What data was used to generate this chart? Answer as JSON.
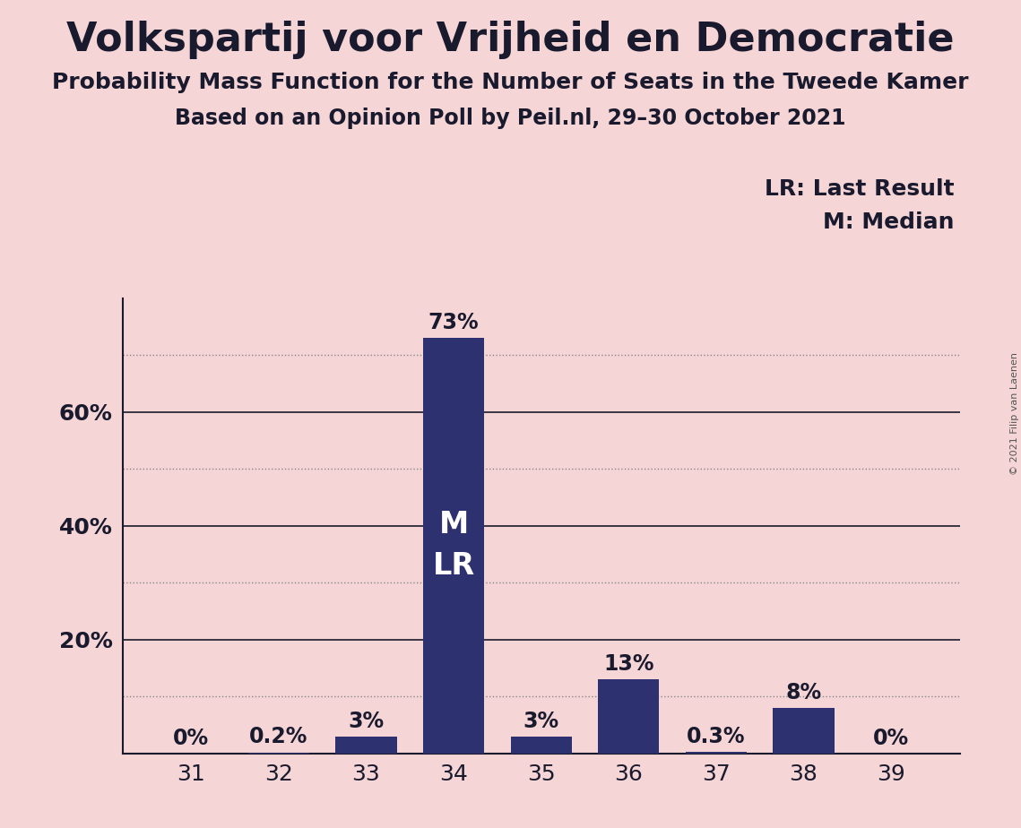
{
  "title": "Volkspartij voor Vrijheid en Democratie",
  "subtitle1": "Probability Mass Function for the Number of Seats in the Tweede Kamer",
  "subtitle2": "Based on an Opinion Poll by Peil.nl, 29–30 October 2021",
  "copyright": "© 2021 Filip van Laenen",
  "categories": [
    31,
    32,
    33,
    34,
    35,
    36,
    37,
    38,
    39
  ],
  "values": [
    0.0,
    0.2,
    3.0,
    73.0,
    3.0,
    13.0,
    0.3,
    8.0,
    0.0
  ],
  "labels": [
    "0%",
    "0.2%",
    "3%",
    "73%",
    "3%",
    "13%",
    "0.3%",
    "8%",
    "0%"
  ],
  "bar_color": "#2E3170",
  "background_color": "#F5D5D5",
  "text_color": "#1a1a2e",
  "label_color_inside": "#ffffff",
  "label_color_outside": "#1a1a2e",
  "solid_yticks": [
    20,
    40,
    60
  ],
  "dotted_yticks": [
    10,
    30,
    50,
    70
  ],
  "ytick_labels_positions": [
    20,
    40,
    60
  ],
  "ytick_labels_values": [
    "20%",
    "40%",
    "60%"
  ],
  "ylim": [
    0,
    80
  ],
  "legend_text1": "LR: Last Result",
  "legend_text2": "M: Median",
  "bar_annotation": "M\nLR",
  "bar_annotation_index": 3,
  "solid_grid_color": "#1a1a2e",
  "dotted_grid_color": "#888888",
  "title_fontsize": 32,
  "subtitle_fontsize": 18,
  "subtitle2_fontsize": 17,
  "tick_fontsize": 18,
  "label_fontsize": 17,
  "legend_fontsize": 18,
  "annotation_fontsize": 24
}
